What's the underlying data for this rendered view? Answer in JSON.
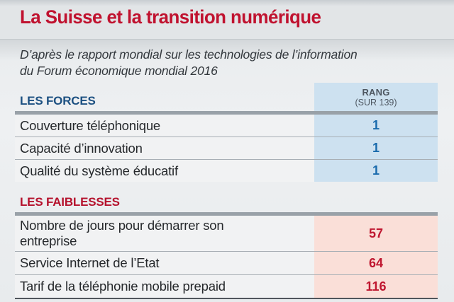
{
  "title": "La Suisse et la transition numérique",
  "subtitle_line1": "D’après le rapport mondial sur les technologies de l’information",
  "subtitle_line2": "du Forum économique mondial 2016",
  "table": {
    "rank_header_line1": "RANG",
    "rank_header_line2": "(SUR 139)",
    "sections": [
      {
        "label": "LES FORCES",
        "rows": [
          {
            "label": "Couverture téléphonique",
            "rank": "1"
          },
          {
            "label": "Capacité d’innovation",
            "rank": "1"
          },
          {
            "label": "Qualité du système éducatif",
            "rank": "1"
          }
        ]
      },
      {
        "label": "LES FAIBLESSES",
        "rows": [
          {
            "label": "Nombre de jours pour démarrer son entreprise",
            "rank": "57"
          },
          {
            "label": "Service Internet de l’Etat",
            "rank": "64"
          },
          {
            "label": "Tarif de la téléphonie mobile prepaid",
            "rank": "116"
          }
        ]
      }
    ]
  },
  "colors": {
    "title_red": "#c0122f",
    "forces_blue": "#1d5182",
    "faiblesses_red": "#b5122d",
    "rank_blue_bg": "#cde1f0",
    "rank_pink_bg": "#fadfd8",
    "rank_blue_text": "#1a6bad",
    "rank_red_text": "#bf1730",
    "bar_gray": "#99a1a8"
  },
  "chart_data": {
    "type": "table",
    "title": "La Suisse et la transition numérique",
    "subtitle": "D’après le rapport mondial sur les technologies de l’information du Forum économique mondial 2016",
    "rank_column_header": "RANG (SUR 139)",
    "rank_scale_max": 139,
    "groups": [
      {
        "name": "LES FORCES",
        "rows": [
          {
            "indicator": "Couverture téléphonique",
            "rank": 1
          },
          {
            "indicator": "Capacité d’innovation",
            "rank": 1
          },
          {
            "indicator": "Qualité du système éducatif",
            "rank": 1
          }
        ]
      },
      {
        "name": "LES FAIBLESSES",
        "rows": [
          {
            "indicator": "Nombre de jours pour démarrer son entreprise",
            "rank": 57
          },
          {
            "indicator": "Service Internet de l’Etat",
            "rank": 64
          },
          {
            "indicator": "Tarif de la téléphonie mobile prepaid",
            "rank": 116
          }
        ]
      }
    ]
  }
}
